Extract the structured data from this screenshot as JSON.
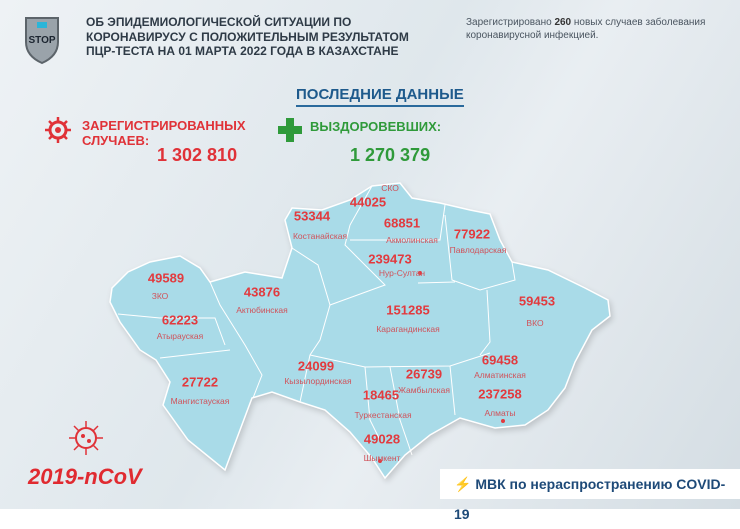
{
  "header": {
    "logo_text": "STOP",
    "title_lines": [
      "ОБ ЭПИДЕМИОЛОГИЧЕСКОЙ СИТУАЦИИ ПО",
      "КОРОНАВИРУСУ С ПОЛОЖИТЕЛЬНЫМ РЕЗУЛЬТАТОМ",
      "ПЦР-ТЕСТА НА 01 МАРТА 2022 ГОДА В КАЗАХСТАНЕ"
    ],
    "news_prefix": "Зарегистрировано ",
    "news_count": "260",
    "news_suffix": " новых случаев заболевания",
    "news_line2": "коронавирусной инфекцией."
  },
  "latest_title": "ПОСЛЕДНИЕ ДАННЫЕ",
  "registered": {
    "label_line1": "ЗАРЕГИСТРИРОВАННЫХ",
    "label_line2": "СЛУЧАЕВ:",
    "value": "1 302 810",
    "icon": "virus-icon"
  },
  "recovered": {
    "label": "ВЫЗДОРОВЕВШИХ:",
    "value": "1 270 379",
    "icon": "plus-icon"
  },
  "regions": [
    {
      "name": "СКО",
      "value": "44025"
    },
    {
      "name": "Костанайская",
      "value": "53344"
    },
    {
      "name": "Акмолинская",
      "value": "68851"
    },
    {
      "name": "Павлодарская",
      "value": "77922"
    },
    {
      "name": "Нур-Султан",
      "value": "239473"
    },
    {
      "name": "ЗКО",
      "value": "49589"
    },
    {
      "name": "Актюбинская",
      "value": "43876"
    },
    {
      "name": "Карагандинская",
      "value": "151285"
    },
    {
      "name": "ВКО",
      "value": "59453"
    },
    {
      "name": "Атырауская",
      "value": "62223"
    },
    {
      "name": "Кызылординская",
      "value": "24099"
    },
    {
      "name": "Жамбылская",
      "value": "26739"
    },
    {
      "name": "Алматинская",
      "value": "69458"
    },
    {
      "name": "Мангистауская",
      "value": "27722"
    },
    {
      "name": "Туркестанская",
      "value": "18465"
    },
    {
      "name": "Алматы",
      "value": "237258"
    },
    {
      "name": "Шымкент",
      "value": "49028"
    }
  ],
  "footer": {
    "ncov": "2019-nCoV",
    "mvk": "МВК по нераспространению COVID-19"
  },
  "colors": {
    "red": "#e03238",
    "green": "#2f9a3a",
    "map": "#a9dbe8",
    "blue": "#1e5a8c"
  }
}
